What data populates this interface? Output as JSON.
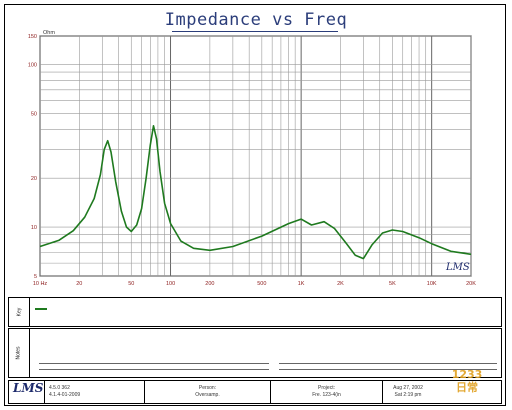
{
  "chart_data": {
    "type": "line",
    "title": "Impedance vs Freq",
    "ylabel": "Ohm",
    "xlabel": "",
    "x_scale": "log",
    "y_scale": "log",
    "xlim": [
      10,
      20000
    ],
    "ylim": [
      5,
      150
    ],
    "x_ticks": [
      {
        "value": 10,
        "label": "10 Hz"
      },
      {
        "value": 20,
        "label": "20"
      },
      {
        "value": 50,
        "label": "50"
      },
      {
        "value": 100,
        "label": "100"
      },
      {
        "value": 200,
        "label": "200"
      },
      {
        "value": 500,
        "label": "500"
      },
      {
        "value": 1000,
        "label": "1K"
      },
      {
        "value": 2000,
        "label": "2K"
      },
      {
        "value": 5000,
        "label": "5K"
      },
      {
        "value": 10000,
        "label": "10K"
      },
      {
        "value": 20000,
        "label": "20K"
      }
    ],
    "y_ticks": [
      {
        "value": 5,
        "label": "5"
      },
      {
        "value": 10,
        "label": "10"
      },
      {
        "value": 20,
        "label": "20"
      },
      {
        "value": 50,
        "label": "50"
      },
      {
        "value": 100,
        "label": "100"
      },
      {
        "value": 150,
        "label": "150"
      }
    ],
    "grid": true,
    "series": [
      {
        "name": "",
        "color": "#1f7a1f",
        "points": [
          [
            10,
            7.6
          ],
          [
            14,
            8.3
          ],
          [
            18,
            9.5
          ],
          [
            22,
            11.5
          ],
          [
            26,
            15
          ],
          [
            29,
            21
          ],
          [
            31,
            30
          ],
          [
            33,
            34
          ],
          [
            35,
            29
          ],
          [
            38,
            19
          ],
          [
            42,
            12.5
          ],
          [
            46,
            10
          ],
          [
            50,
            9.4
          ],
          [
            55,
            10.3
          ],
          [
            60,
            13
          ],
          [
            65,
            20
          ],
          [
            70,
            32
          ],
          [
            74,
            42
          ],
          [
            78,
            35
          ],
          [
            83,
            22
          ],
          [
            90,
            14
          ],
          [
            100,
            10.5
          ],
          [
            120,
            8.2
          ],
          [
            150,
            7.4
          ],
          [
            200,
            7.2
          ],
          [
            300,
            7.6
          ],
          [
            500,
            8.8
          ],
          [
            800,
            10.5
          ],
          [
            1000,
            11.2
          ],
          [
            1200,
            10.3
          ],
          [
            1500,
            10.8
          ],
          [
            1800,
            9.8
          ],
          [
            2200,
            8.0
          ],
          [
            2600,
            6.7
          ],
          [
            3000,
            6.4
          ],
          [
            3500,
            7.8
          ],
          [
            4200,
            9.2
          ],
          [
            5000,
            9.6
          ],
          [
            6000,
            9.4
          ],
          [
            8000,
            8.6
          ],
          [
            10000,
            7.9
          ],
          [
            14000,
            7.1
          ],
          [
            20000,
            6.8
          ]
        ]
      }
    ]
  },
  "notes_label": "Notes",
  "key_label": "Key",
  "plot_logo": "LMS",
  "footer": {
    "logo": "LMS",
    "version": "4.5.0 362",
    "version_date": "4.1.4-01-2009",
    "person_label": "Person:",
    "person_value": "Oversamp.",
    "project_label": "Project:",
    "project_value": "Fre. 123-4(in",
    "date": "Aug 27, 2002",
    "time": "Sat 2:19 pm"
  },
  "watermark": [
    "1233",
    "日常"
  ]
}
